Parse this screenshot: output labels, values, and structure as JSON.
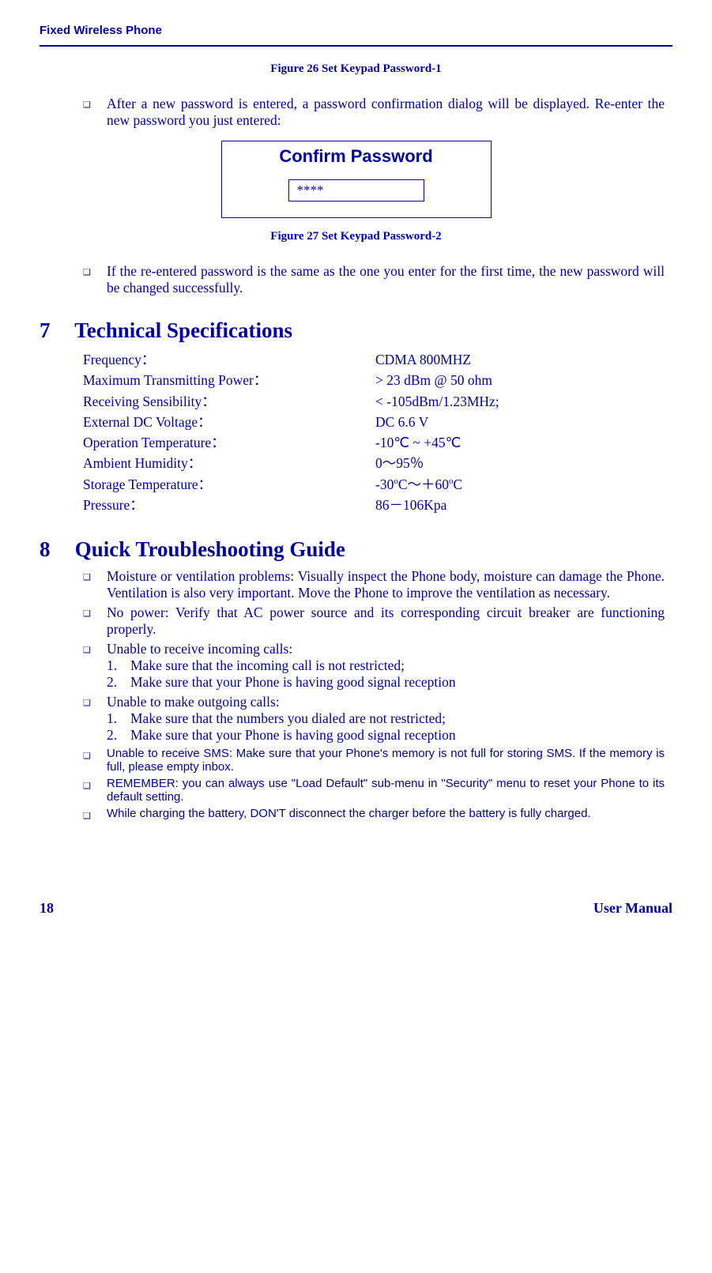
{
  "header": {
    "title": "Fixed Wireless Phone"
  },
  "fig26": {
    "caption": "Figure 26 Set Keypad Password-1"
  },
  "bullet1": {
    "text": "After a new password is entered, a password confirmation dialog will be displayed. Re-enter the new password you just entered:"
  },
  "dialog": {
    "title": "Confirm Password",
    "value": "****"
  },
  "fig27": {
    "caption": "Figure 27 Set Keypad Password-2"
  },
  "bullet2": {
    "text": "If the re-entered password is the same as the one you enter for the first time, the new password will be changed successfully."
  },
  "section7": {
    "num": "7",
    "title": "Technical Specifications",
    "rows": [
      {
        "label": "Frequency：",
        "value": "CDMA 800MHZ"
      },
      {
        "label": "Maximum Transmitting Power：",
        "value": "> 23 dBm @ 50 ohm"
      },
      {
        "label": "Receiving Sensibility：",
        "value": "< -105dBm/1.23MHz;"
      },
      {
        "label": "External DC Voltage：",
        "value": "DC  6.6 V"
      },
      {
        "label": "Operation Temperature：",
        "value": "-10℃ ~ +45℃"
      },
      {
        "label": "Ambient Humidity：",
        "value": "0～95％"
      },
      {
        "label": "Storage Temperature：",
        "value_html": "-30<sup>o</sup>C～＋60<sup>o</sup>C"
      },
      {
        "label": "Pressure：",
        "value": "86－106Kpa"
      }
    ]
  },
  "section8": {
    "num": "8",
    "title": " Quick Troubleshooting Guide",
    "items": [
      {
        "type": "serif",
        "text": "Moisture or ventilation problems: Visually inspect the Phone body, moisture can damage the Phone. Ventilation is also very important. Move the Phone to improve the ventilation as necessary."
      },
      {
        "type": "serif",
        "text": "No power: Verify that AC power source and its corresponding circuit breaker are functioning properly."
      },
      {
        "type": "serif",
        "text": "Unable to receive incoming calls:",
        "sub": [
          {
            "n": "1.",
            "text": "Make sure that the incoming call is not restricted;"
          },
          {
            "n": "2.",
            "text": "Make sure that your Phone is having good signal reception"
          }
        ]
      },
      {
        "type": "serif",
        "text": "Unable to make outgoing calls:",
        "sub": [
          {
            "n": "1.",
            "text": "Make sure that the numbers you dialed  are  not restricted;"
          },
          {
            "n": "2.",
            "text": "Make sure that your Phone is having good signal reception"
          }
        ]
      },
      {
        "type": "sans",
        "text": "Unable to receive SMS: Make sure that your Phone's memory is not full for storing SMS. If the memory is full, please empty inbox."
      },
      {
        "type": "sans",
        "text": "REMEMBER: you can always use \"Load Default\" sub-menu in \"Security\" menu to reset your Phone to its default setting."
      },
      {
        "type": "sans",
        "text": "While charging the battery, DON'T disconnect the charger before the battery is fully charged."
      }
    ]
  },
  "footer": {
    "page": "18",
    "label": "User Manual"
  }
}
